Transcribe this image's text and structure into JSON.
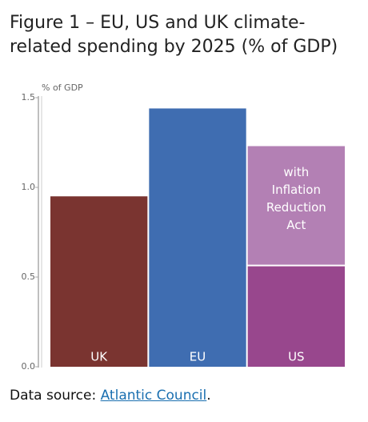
{
  "chart_data": {
    "type": "stacked_bar",
    "title": "Figure 1 – EU, US and UK climate-related spending by 2025 (% of GDP)",
    "y_label": "% of GDP",
    "categories": [
      "UK",
      "EU",
      "US"
    ],
    "series": [
      {
        "colors": [
          "#7a3430",
          "#3f6db1",
          "#98478d"
        ],
        "values": [
          0.95,
          1.44,
          0.56
        ]
      },
      {
        "name": "with Inflation Reduction Act",
        "color": "#b380b4",
        "values": [
          null,
          null,
          0.67
        ]
      }
    ],
    "ylim": [
      0,
      1.5
    ],
    "yticks": [
      {
        "value": 0,
        "label": "0.0"
      },
      0.5,
      {
        "value": 1,
        "label": "1.0"
      },
      {
        "value": 1.5,
        "label": "1.5"
      }
    ],
    "source": {
      "prefix": "Data source:",
      "link": "Atlantic Council",
      "suffix": "."
    }
  }
}
